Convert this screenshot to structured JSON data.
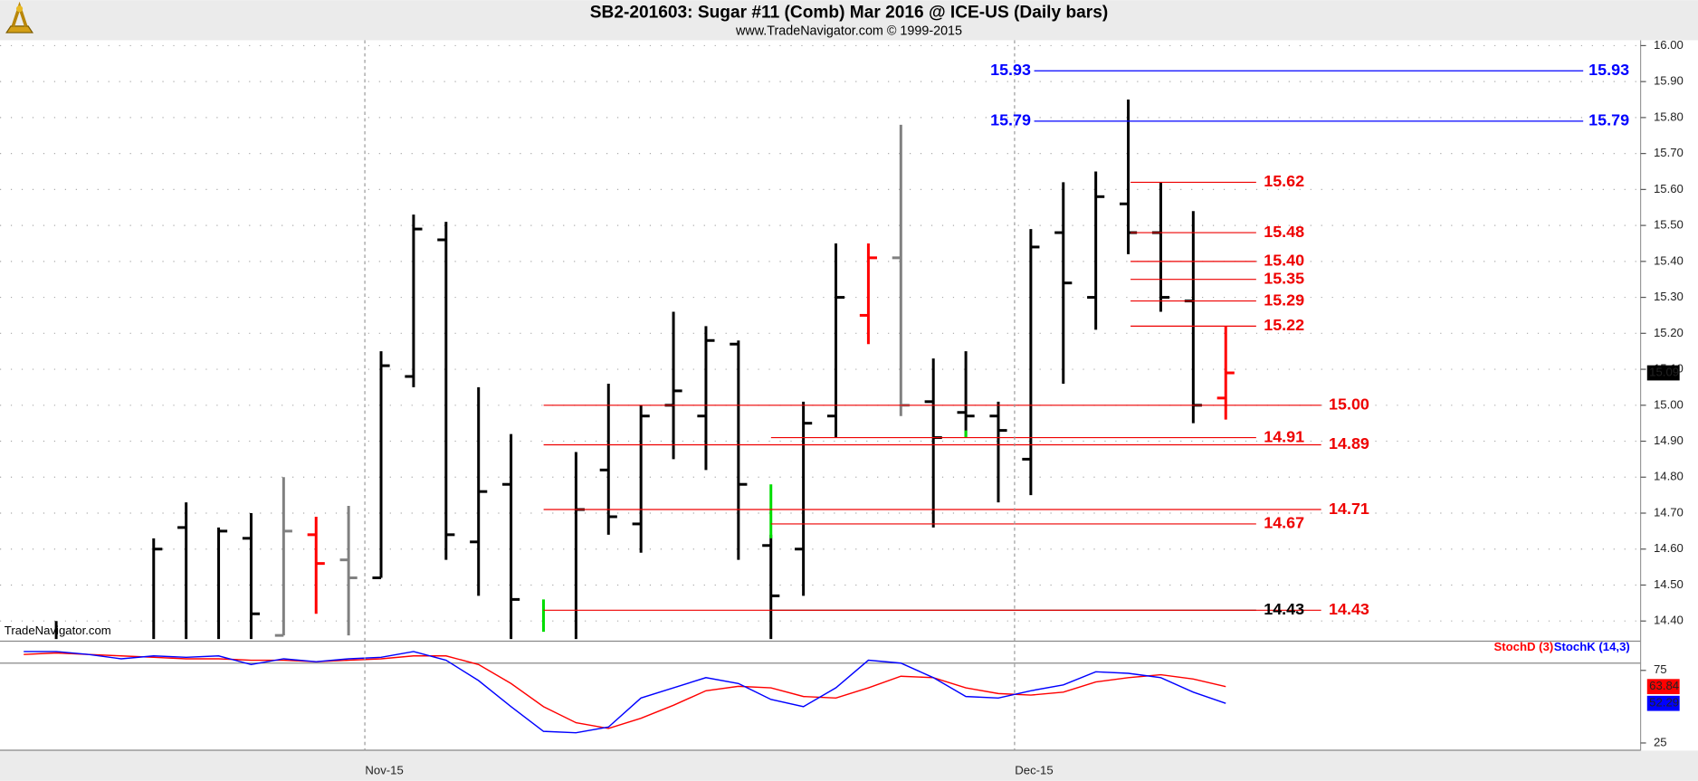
{
  "chart_data": [
    {
      "type": "ohlc",
      "title": "SB2-201603:  Sugar #11 (Comb) Mar 2016 @ ICE-US  (Daily bars)",
      "subtitle": "www.TradeNavigator.com © 1999-2015",
      "watermark": "TradeNavigator.com",
      "xlim": [
        -4.73,
        45.77
      ],
      "xticks": [
        {
          "value": 6.5,
          "label": "Nov-15"
        },
        {
          "value": 26.5,
          "label": "Dec-15"
        }
      ],
      "ylim": [
        14.35,
        16.015
      ],
      "yticks": [
        {
          "value": 14.4,
          "label": "14.40"
        },
        {
          "value": 14.5,
          "label": "14.50"
        },
        {
          "value": 14.6,
          "label": "14.60"
        },
        {
          "value": 14.7,
          "label": "14.70"
        },
        {
          "value": 14.8,
          "label": "14.80"
        },
        {
          "value": 14.9,
          "label": "14.90"
        },
        {
          "value": 15.0,
          "label": "15.00"
        },
        {
          "value": 15.1,
          "label": "15.10"
        },
        {
          "value": 15.2,
          "label": "15.20"
        },
        {
          "value": 15.3,
          "label": "15.30"
        },
        {
          "value": 15.4,
          "label": "15.40"
        },
        {
          "value": 15.5,
          "label": "15.50"
        },
        {
          "value": 15.6,
          "label": "15.60"
        },
        {
          "value": 15.7,
          "label": "15.70"
        },
        {
          "value": 15.8,
          "label": "15.80"
        },
        {
          "value": 15.9,
          "label": "15.90"
        },
        {
          "value": 16.0,
          "label": "16.00"
        }
      ],
      "grid": true,
      "bars": {
        "x": [
          -3,
          0,
          1,
          2,
          3,
          4,
          5,
          6,
          7,
          8,
          9,
          10,
          11,
          13,
          14,
          15,
          16,
          17,
          18,
          19,
          20,
          21,
          22,
          23,
          24,
          25,
          26,
          27,
          28,
          29,
          30,
          31,
          32,
          33
        ],
        "open": [
          null,
          null,
          14.66,
          null,
          14.63,
          14.36,
          14.64,
          14.57,
          14.52,
          15.08,
          15.46,
          14.62,
          14.78,
          null,
          14.82,
          14.67,
          15.0,
          14.97,
          15.17,
          14.61,
          14.6,
          14.97,
          15.25,
          15.41,
          15.01,
          14.98,
          14.97,
          14.85,
          15.48,
          15.3,
          15.56,
          15.48,
          15.29,
          15.02
        ],
        "high": [
          14.4,
          14.63,
          14.73,
          14.66,
          14.7,
          14.8,
          14.69,
          14.72,
          15.15,
          15.53,
          15.51,
          15.05,
          14.92,
          14.87,
          15.06,
          15.0,
          15.26,
          15.22,
          15.18,
          14.64,
          15.01,
          15.45,
          15.45,
          15.78,
          15.13,
          15.15,
          15.01,
          15.49,
          15.62,
          15.65,
          15.85,
          15.62,
          15.54,
          15.22
        ],
        "low": [
          14.3,
          14.3,
          14.3,
          14.3,
          14.3,
          14.36,
          14.42,
          14.36,
          14.52,
          15.05,
          14.57,
          14.47,
          14.3,
          14.3,
          14.64,
          14.59,
          14.85,
          14.82,
          14.57,
          14.3,
          14.47,
          14.91,
          15.17,
          14.97,
          14.66,
          14.91,
          14.73,
          14.75,
          15.06,
          15.21,
          15.42,
          15.26,
          14.95,
          14.96
        ],
        "close": [
          null,
          14.6,
          null,
          14.65,
          14.42,
          14.65,
          14.56,
          14.52,
          15.11,
          15.49,
          14.64,
          14.76,
          14.46,
          14.71,
          14.69,
          14.97,
          15.04,
          15.18,
          14.78,
          14.47,
          14.95,
          15.3,
          15.41,
          15.0,
          14.91,
          14.97,
          14.93,
          15.44,
          15.34,
          15.58,
          15.48,
          15.3,
          15.0,
          15.09
        ],
        "colors": [
          "#000000",
          "#000000",
          "#000000",
          "#000000",
          "#000000",
          "#808080",
          "#ff0000",
          "#808080",
          "#000000",
          "#000000",
          "#000000",
          "#000000",
          "#000000",
          "#000000",
          "#000000",
          "#000000",
          "#000000",
          "#000000",
          "#000000",
          "#000000",
          "#000000",
          "#000000",
          "#ff0000",
          "#808080",
          "#000000",
          "#000000",
          "#000000",
          "#000000",
          "#000000",
          "#000000",
          "#000000",
          "#000000",
          "#000000",
          "#ff0000"
        ]
      },
      "highlights": {
        "color": "#00dd00",
        "x": [
          12,
          19,
          25
        ],
        "high": [
          14.46,
          14.78,
          14.93
        ],
        "low": [
          14.37,
          14.63,
          14.91
        ]
      },
      "levels": [
        {
          "value": 15.93,
          "label": "15.93",
          "color": "#0000ff"
        },
        {
          "value": 15.79,
          "label": "15.79",
          "color": "#0000ff"
        },
        {
          "value": 15.62,
          "label": "15.62",
          "color": "#ee0000"
        },
        {
          "value": 15.48,
          "label": "15.48",
          "color": "#ee0000"
        },
        {
          "value": 15.4,
          "label": "15.40",
          "color": "#ee0000"
        },
        {
          "value": 15.35,
          "label": "15.35",
          "color": "#ee0000"
        },
        {
          "value": 15.29,
          "label": "15.29",
          "color": "#ee0000"
        },
        {
          "value": 15.22,
          "label": "15.22",
          "color": "#ee0000"
        },
        {
          "value": 15.0,
          "label": "15.00",
          "color": "#ee0000"
        },
        {
          "value": 14.91,
          "label": "14.91",
          "color": "#ee0000"
        },
        {
          "value": 14.89,
          "label": "14.89",
          "color": "#ee0000"
        },
        {
          "value": 14.71,
          "label": "14.71",
          "color": "#ee0000"
        },
        {
          "value": 14.67,
          "label": "14.67",
          "color": "#ee0000"
        },
        {
          "value": 14.43,
          "label": "14.43",
          "color": "#000000"
        },
        {
          "value": 14.43,
          "label": "14.43",
          "color": "#ee0000"
        }
      ]
    },
    {
      "type": "line",
      "x": [
        -4,
        -3,
        -2,
        -1,
        0,
        1,
        2,
        3,
        4,
        5,
        6,
        7,
        8,
        9,
        10,
        11,
        12,
        13,
        14,
        15,
        16,
        17,
        18,
        19,
        20,
        21,
        22,
        23,
        24,
        25,
        26,
        27,
        28,
        29,
        30,
        31,
        32,
        33
      ],
      "ylim": [
        19.8,
        92.9
      ],
      "yticks": [
        25,
        75
      ],
      "reference_lines": [
        20,
        80
      ],
      "series": [
        {
          "name": "StochD (3)",
          "color": "#ff0000",
          "values": [
            86,
            87,
            86,
            85,
            84,
            83,
            83,
            82,
            82,
            81,
            82,
            83,
            85,
            85,
            79,
            66,
            50,
            39,
            35,
            42,
            51,
            61,
            64,
            63,
            57,
            56,
            63,
            71,
            70,
            63,
            59,
            58,
            60,
            67,
            70,
            72,
            69,
            63.84
          ]
        },
        {
          "name": "StochK (14,3)",
          "color": "#0000ff",
          "values": [
            88,
            88,
            86,
            83,
            85,
            84,
            85,
            79,
            83,
            81,
            83,
            84,
            88,
            82,
            68,
            50,
            33,
            32,
            36,
            56,
            63,
            70,
            66,
            55,
            50,
            63,
            82,
            80,
            70,
            57,
            56,
            61,
            65,
            74,
            73,
            70,
            60,
            52.29
          ]
        }
      ]
    }
  ]
}
